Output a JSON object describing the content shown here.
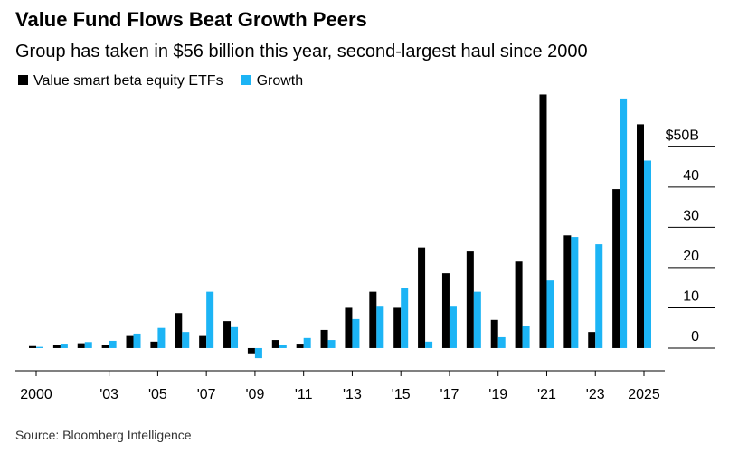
{
  "chart_data": {
    "type": "bar",
    "title": "Value Fund Flows Beat Growth Peers",
    "subtitle": "Group has taken in $56 billion this year, second-largest haul since 2000",
    "source": "Source: Bloomberg Intelligence",
    "categories": [
      "2000",
      null,
      null,
      "'03",
      null,
      "'05",
      null,
      "'07",
      null,
      "'09",
      null,
      "'11",
      null,
      "'13",
      null,
      "'15",
      null,
      "'17",
      null,
      "'19",
      null,
      "'21",
      null,
      "'23",
      null,
      "2025"
    ],
    "series": [
      {
        "name": "Value smart beta equity ETFs",
        "color": "#000000",
        "values": [
          0.5,
          0.7,
          1.2,
          0.8,
          3,
          1.6,
          8.7,
          3,
          6.7,
          -1.3,
          2,
          1.1,
          4.5,
          10,
          14,
          10,
          25,
          18.6,
          24,
          7,
          21.5,
          63,
          28,
          4,
          39.5,
          55.6
        ]
      },
      {
        "name": "Growth",
        "color": "#1cb4f5",
        "values": [
          0.3,
          1.1,
          1.5,
          1.8,
          3.6,
          5,
          4,
          14,
          5.2,
          -2.5,
          0.7,
          2.5,
          2,
          7.2,
          10.5,
          15,
          1.6,
          10.5,
          14,
          2.7,
          5.4,
          16.8,
          27.6,
          25.8,
          62,
          46.6
        ]
      }
    ],
    "ylim": [
      -4.5,
      64
    ],
    "yticks": [
      0,
      10,
      20,
      30,
      40,
      {
        "value": 50,
        "label": "$50B"
      }
    ]
  }
}
